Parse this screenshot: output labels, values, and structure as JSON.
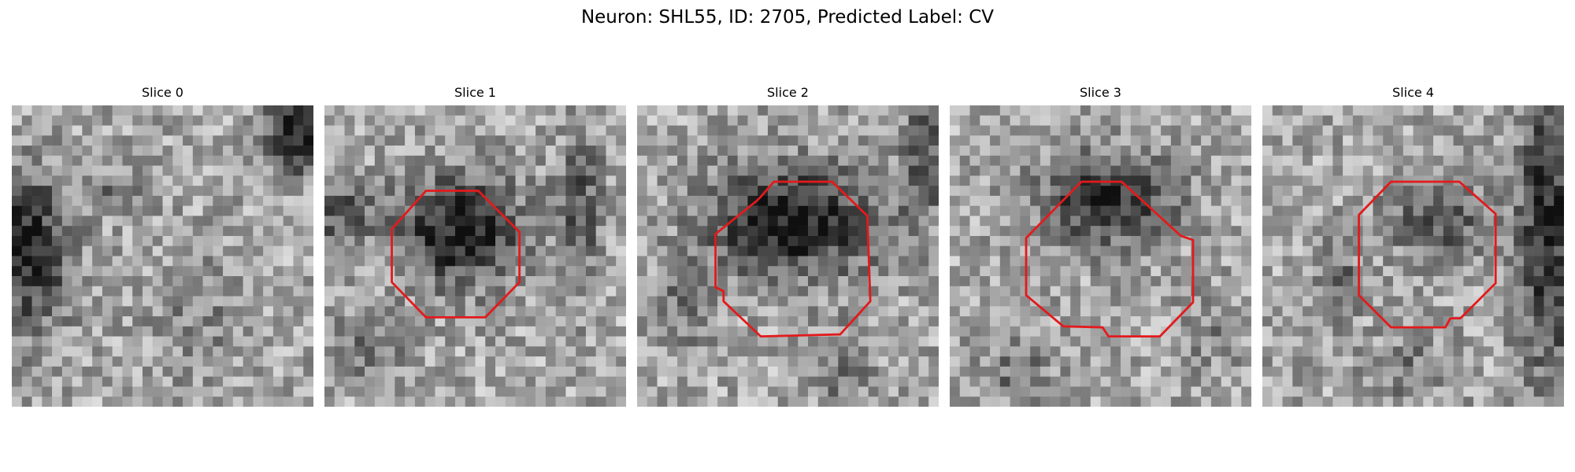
{
  "figure": {
    "title": "Neuron: SHL55, ID: 2705, Predicted Label: CV"
  },
  "colors": {
    "background": "#ffffff",
    "contour": "#e31a1c",
    "grayscale_dark": "#111111",
    "grayscale_light": "#f2f2f2"
  },
  "panels": [
    {
      "title": "Slice 0",
      "has_contour": false
    },
    {
      "title": "Slice 1",
      "has_contour": true
    },
    {
      "title": "Slice 2",
      "has_contour": true
    },
    {
      "title": "Slice 3",
      "has_contour": true
    },
    {
      "title": "Slice 4",
      "has_contour": true
    }
  ]
}
